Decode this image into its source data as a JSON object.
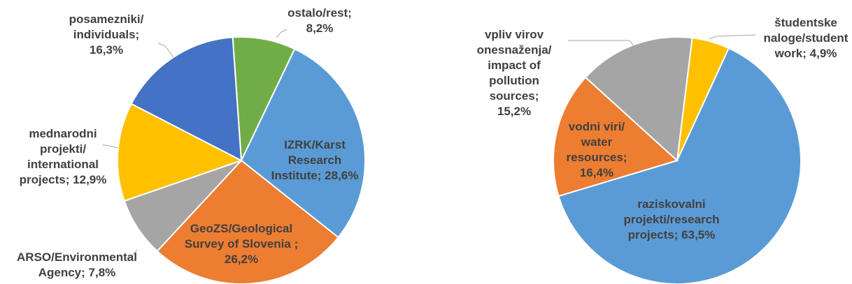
{
  "chart_data": [
    {
      "type": "pie",
      "categories": [
        "ostalo/rest;",
        "IZRK/Karst Research Institute;",
        "GeoZS/Geological Survey of Slovenia ;",
        "ARSO/Environmental Agency;",
        "mednarodni projekti/international projects;",
        "posamezniki/individuals;"
      ],
      "values": [
        8.2,
        28.6,
        26.2,
        7.8,
        12.9,
        16.3
      ],
      "value_labels": [
        "8,2%",
        "28,6%",
        "26,2%",
        "7,8%",
        "12,9%",
        "16,3%"
      ],
      "colors": [
        "#70ad47",
        "#5b9bd5",
        "#ed7d31",
        "#a5a5a5",
        "#ffc000",
        "#4472c4"
      ]
    },
    {
      "type": "pie",
      "categories": [
        "študentske naloge/student work;",
        "raziskovalni projekti/research projects;",
        "vodni viri/water resources;",
        "vpliv virov onesnaženja/impact of pollution sources;"
      ],
      "values": [
        4.9,
        63.5,
        16.4,
        15.2
      ],
      "value_labels": [
        "4,9%",
        "63,5%",
        "16,4%",
        "15,2%"
      ],
      "colors": [
        "#ffc000",
        "#5b9bd5",
        "#ed7d31",
        "#a5a5a5"
      ]
    }
  ]
}
